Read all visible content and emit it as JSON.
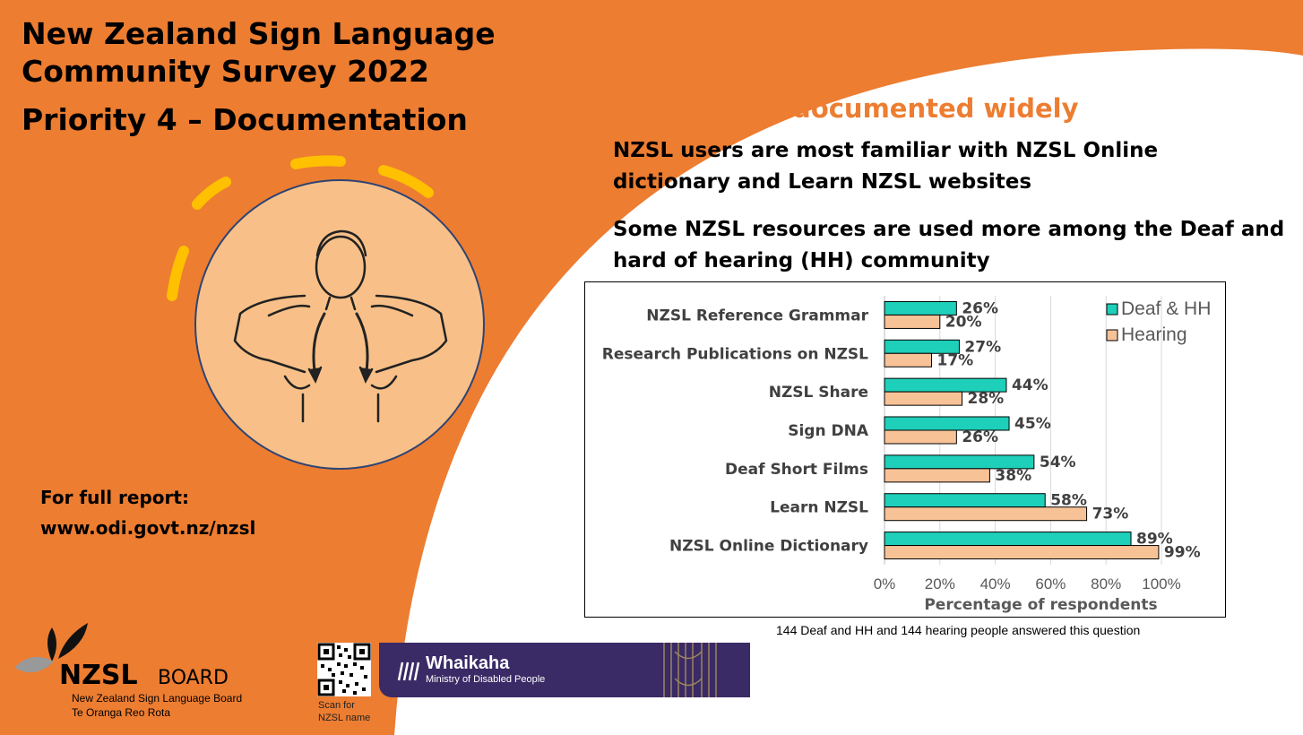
{
  "header": {
    "title_line1": "New Zealand Sign Language",
    "title_line2": "Community Survey 2022",
    "title_line3": "Priority 4 – Documentation"
  },
  "headline": "NZSL is documented widely",
  "subheadings": [
    "NZSL users are most familiar with NZSL Online dictionary and Learn NZSL websites",
    "Some NZSL resources are used more among the Deaf and hard of hearing (HH) community"
  ],
  "report": {
    "line1": "For full report:",
    "line2": "www.odi.govt.nz/nzsl"
  },
  "footnote": "144 Deaf and HH and 144 hearing people answered this question",
  "logo": {
    "name": "NZSL",
    "board": "BOARD",
    "sub1": "New Zealand Sign Language Board",
    "sub2": "Te Oranga Reo Rota"
  },
  "qr": {
    "caption_line1": "Scan for",
    "caption_line2": "NZSL name"
  },
  "banner": {
    "name": "Whaikaha",
    "sub": "Ministry of Disabled People"
  },
  "colors": {
    "orange": "#ED7D31",
    "teal": "#1ECFB9",
    "peach": "#F8C297",
    "yellow": "#FFC000"
  },
  "chart_data": {
    "type": "bar",
    "orientation": "horizontal",
    "categories": [
      "NZSL Reference Grammar",
      "Research Publications on NZSL",
      "NZSL Share",
      "Sign DNA",
      "Deaf Short Films",
      "Learn NZSL",
      "NZSL Online Dictionary"
    ],
    "series": [
      {
        "name": "Deaf & HH",
        "color": "#1ECFB9",
        "values": [
          26,
          27,
          44,
          45,
          54,
          58,
          89
        ],
        "labels": [
          "26%",
          "27%",
          "44%",
          "45%",
          "54%",
          "58%",
          "89%"
        ]
      },
      {
        "name": "Hearing",
        "color": "#F8C297",
        "values": [
          20,
          17,
          28,
          26,
          38,
          73,
          99
        ],
        "labels": [
          "20%",
          "17%",
          "28%",
          "26%",
          "38%",
          "73%",
          "99%"
        ]
      }
    ],
    "xlabel": "Percentage of respondents",
    "xlim": [
      0,
      100
    ],
    "xticks": [
      0,
      20,
      40,
      60,
      80,
      100
    ],
    "xtick_labels": [
      "0%",
      "20%",
      "40%",
      "60%",
      "80%",
      "100%"
    ],
    "grid": true,
    "legend_position": "top-right"
  }
}
